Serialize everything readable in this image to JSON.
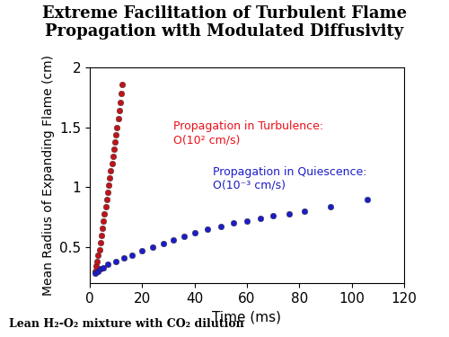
{
  "chart_data": {
    "type": "scatter",
    "title": "Extreme Facilitation of Turbulent Flame Propagation with Modulated Diffusivity",
    "x_label": "Time (ms)",
    "y_label": "Mean Radius of Expanding Flame (cm)",
    "xlim": [
      0,
      120
    ],
    "xticks": [
      0,
      20,
      40,
      60,
      80,
      100,
      120
    ],
    "ylim": [
      0.2,
      2
    ],
    "yticks": [
      0.5,
      1,
      1.5,
      2
    ],
    "marker": "o",
    "series": [
      {
        "color": "#c0141a",
        "x": [
          2.0,
          2.4,
          2.8,
          3.2,
          3.6,
          4.0,
          4.4,
          4.8,
          5.2,
          5.6,
          6.0,
          6.4,
          6.8,
          7.2,
          7.6,
          8.0,
          8.4,
          8.8,
          9.2,
          9.6,
          10.0,
          10.4,
          10.8,
          11.2,
          11.6,
          12.0,
          12.4
        ],
        "values": [
          0.3,
          0.34,
          0.38,
          0.43,
          0.48,
          0.54,
          0.6,
          0.66,
          0.72,
          0.78,
          0.84,
          0.9,
          0.96,
          1.02,
          1.08,
          1.14,
          1.2,
          1.26,
          1.32,
          1.38,
          1.44,
          1.5,
          1.57,
          1.64,
          1.71,
          1.78,
          1.86
        ]
      },
      {
        "color": "#1c1cc8",
        "x": [
          2,
          3,
          4,
          5,
          7,
          10,
          13,
          16,
          20,
          24,
          28,
          32,
          36,
          40,
          45,
          50,
          55,
          60,
          65,
          70,
          76,
          82,
          92,
          106
        ],
        "values": [
          0.28,
          0.3,
          0.32,
          0.33,
          0.36,
          0.38,
          0.41,
          0.43,
          0.47,
          0.5,
          0.53,
          0.56,
          0.59,
          0.62,
          0.65,
          0.67,
          0.7,
          0.72,
          0.74,
          0.76,
          0.78,
          0.8,
          0.84,
          0.9
        ]
      }
    ],
    "annotations": [
      {
        "text": "Propagation in Turbulence:\nO(10² cm/s)",
        "x": 32,
        "y": 1.45,
        "color": "#e8101a"
      },
      {
        "text": "Propagation in Quiescence:\nO(10⁻³ cm/s)",
        "x": 47,
        "y": 1.07,
        "color": "#1c1cc8"
      }
    ],
    "footnote": "Lean H₂-O₂ mixture with CO₂ dilution"
  }
}
